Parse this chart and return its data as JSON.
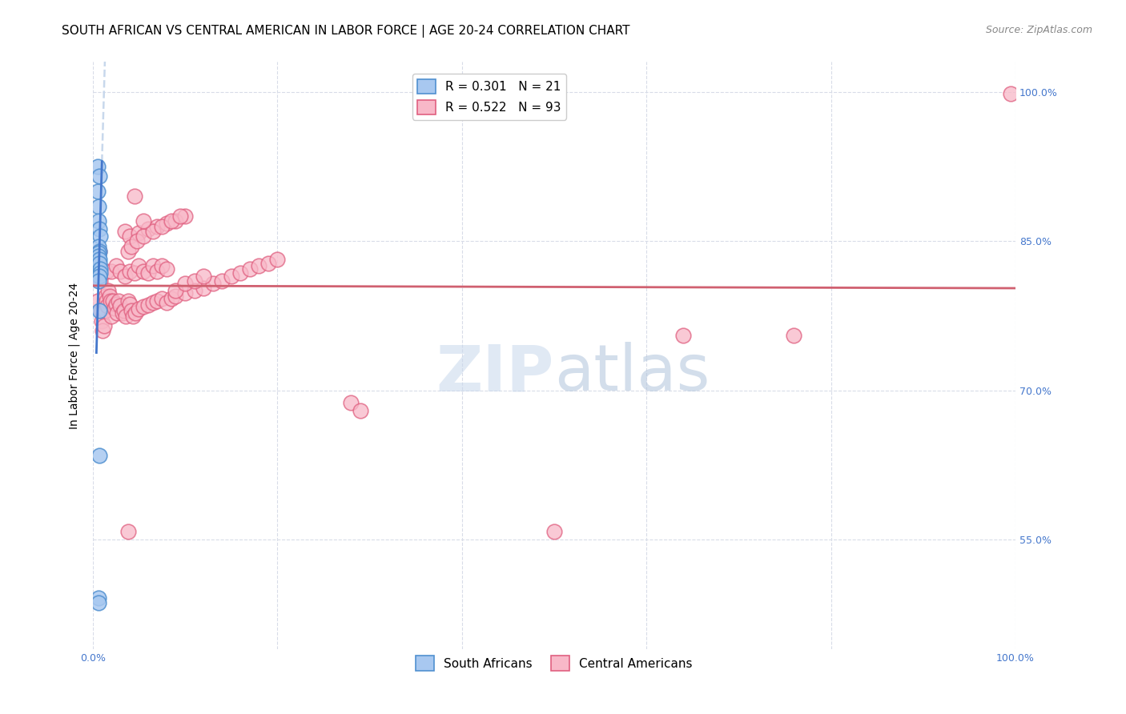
{
  "title": "SOUTH AFRICAN VS CENTRAL AMERICAN IN LABOR FORCE | AGE 20-24 CORRELATION CHART",
  "source": "Source: ZipAtlas.com",
  "ylabel": "In Labor Force | Age 20-24",
  "xlim": [
    0.0,
    1.0
  ],
  "ylim": [
    0.44,
    1.03
  ],
  "yticks": [
    0.55,
    0.7,
    0.85,
    1.0
  ],
  "ytick_labels": [
    "55.0%",
    "70.0%",
    "85.0%",
    "100.0%"
  ],
  "xticks": [
    0.0,
    0.2,
    0.4,
    0.6,
    0.8,
    1.0
  ],
  "xtick_labels": [
    "0.0%",
    "",
    "",
    "",
    "",
    "100.0%"
  ],
  "r_blue": 0.301,
  "n_blue": 21,
  "r_pink": 0.522,
  "n_pink": 93,
  "blue_fill": "#A8C8F0",
  "blue_edge": "#5090D0",
  "pink_fill": "#F8B8C8",
  "pink_edge": "#E06080",
  "trendline_blue": "#4477CC",
  "trendline_pink": "#D06070",
  "diagonal_color": "#C8D8EC",
  "right_tick_color": "#4477CC",
  "blue_scatter_x": [
    0.005,
    0.007,
    0.005,
    0.006,
    0.006,
    0.007,
    0.008,
    0.006,
    0.007,
    0.006,
    0.006,
    0.007,
    0.007,
    0.008,
    0.008,
    0.007,
    0.006,
    0.007,
    0.006,
    0.006,
    0.007
  ],
  "blue_scatter_y": [
    0.925,
    0.915,
    0.9,
    0.885,
    0.87,
    0.862,
    0.855,
    0.845,
    0.84,
    0.838,
    0.835,
    0.832,
    0.828,
    0.822,
    0.818,
    0.815,
    0.81,
    0.635,
    0.492,
    0.487,
    0.78
  ],
  "pink_scatter_x": [
    0.005,
    0.007,
    0.008,
    0.009,
    0.01,
    0.01,
    0.011,
    0.012,
    0.013,
    0.014,
    0.015,
    0.016,
    0.017,
    0.018,
    0.019,
    0.02,
    0.022,
    0.024,
    0.025,
    0.026,
    0.028,
    0.03,
    0.032,
    0.034,
    0.036,
    0.038,
    0.04,
    0.042,
    0.044,
    0.046,
    0.05,
    0.055,
    0.06,
    0.065,
    0.07,
    0.075,
    0.08,
    0.085,
    0.09,
    0.1,
    0.11,
    0.12,
    0.13,
    0.14,
    0.15,
    0.16,
    0.17,
    0.18,
    0.19,
    0.2,
    0.015,
    0.02,
    0.025,
    0.03,
    0.035,
    0.04,
    0.045,
    0.05,
    0.055,
    0.06,
    0.065,
    0.07,
    0.075,
    0.08,
    0.09,
    0.1,
    0.11,
    0.12,
    0.035,
    0.04,
    0.05,
    0.06,
    0.07,
    0.08,
    0.09,
    0.1,
    0.038,
    0.042,
    0.048,
    0.055,
    0.065,
    0.075,
    0.085,
    0.095,
    0.64,
    0.76,
    0.28,
    0.29,
    0.038,
    0.5,
    0.995,
    0.045,
    0.055
  ],
  "pink_scatter_y": [
    0.79,
    0.84,
    0.81,
    0.78,
    0.77,
    0.78,
    0.76,
    0.765,
    0.78,
    0.795,
    0.79,
    0.785,
    0.8,
    0.795,
    0.79,
    0.775,
    0.79,
    0.783,
    0.787,
    0.778,
    0.79,
    0.785,
    0.778,
    0.78,
    0.775,
    0.79,
    0.787,
    0.78,
    0.775,
    0.778,
    0.782,
    0.784,
    0.786,
    0.788,
    0.79,
    0.792,
    0.788,
    0.792,
    0.795,
    0.798,
    0.8,
    0.803,
    0.808,
    0.81,
    0.815,
    0.818,
    0.822,
    0.825,
    0.828,
    0.832,
    0.82,
    0.82,
    0.825,
    0.82,
    0.815,
    0.82,
    0.818,
    0.825,
    0.82,
    0.818,
    0.825,
    0.82,
    0.825,
    0.822,
    0.8,
    0.808,
    0.81,
    0.815,
    0.86,
    0.855,
    0.858,
    0.862,
    0.865,
    0.868,
    0.87,
    0.875,
    0.84,
    0.845,
    0.85,
    0.855,
    0.86,
    0.865,
    0.87,
    0.875,
    0.755,
    0.755,
    0.688,
    0.68,
    0.558,
    0.558,
    0.998,
    0.895,
    0.87
  ],
  "title_fontsize": 11,
  "source_fontsize": 9,
  "axis_label_fontsize": 10,
  "tick_fontsize": 9,
  "legend_fontsize": 11
}
